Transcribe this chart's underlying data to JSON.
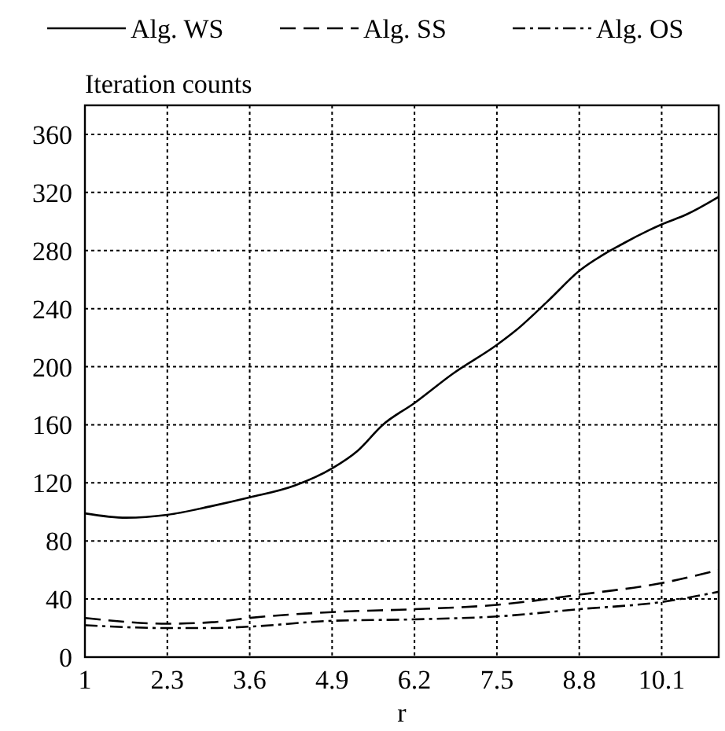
{
  "chart_data": {
    "type": "line",
    "xlabel": "r",
    "ylabel": "Iteration counts",
    "xlim": [
      1,
      11
    ],
    "xticks": [
      1,
      2.3,
      3.6,
      4.9,
      6.2,
      7.5,
      8.8,
      10.1
    ],
    "ylim": [
      0,
      380
    ],
    "yticks": [
      0,
      40,
      80,
      120,
      160,
      200,
      240,
      280,
      320,
      360
    ],
    "grid": true,
    "legend": "top",
    "x": [
      1,
      1.65,
      2.3,
      3,
      3.6,
      4.3,
      4.9,
      5.3,
      5.7,
      6.2,
      6.8,
      7.5,
      7.8,
      8.3,
      8.8,
      9.5,
      9.9,
      10.1,
      10.5,
      11
    ],
    "series": [
      {
        "name": "Alg. WS",
        "color": "#000000",
        "line_style": "solid",
        "values": [
          99,
          96,
          98,
          104,
          110,
          118,
          130,
          142,
          160,
          175,
          195,
          215,
          225,
          245,
          266,
          285,
          294,
          298,
          305,
          317
        ]
      },
      {
        "name": "Alg. SS",
        "color": "#000000",
        "line_style": "dashed",
        "x": [
          1,
          2.3,
          3,
          3.6,
          4.9,
          6.2,
          7.5,
          8.8,
          10.1,
          11
        ],
        "values": [
          27,
          23,
          24,
          27,
          31,
          33,
          36,
          43,
          51,
          60
        ]
      },
      {
        "name": "Alg. OS",
        "color": "#000000",
        "line_style": "dashdot",
        "x": [
          1,
          2.3,
          3,
          3.6,
          4.9,
          6.2,
          7.5,
          8.8,
          10.1,
          11
        ],
        "values": [
          22,
          20,
          20,
          21,
          25,
          26,
          28,
          33,
          38,
          45
        ]
      }
    ]
  }
}
